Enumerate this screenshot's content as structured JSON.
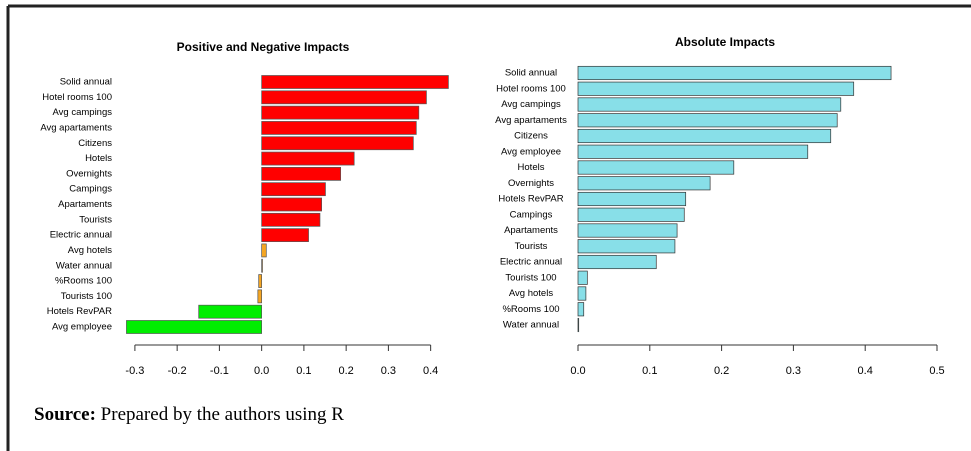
{
  "chart_data": [
    {
      "type": "barh",
      "title": "Positive and Negative Impacts",
      "categories": [
        "Solid annual",
        "Hotel rooms 100",
        "Avg campings",
        "Avg apartaments",
        "Citizens",
        "Hotels",
        "Overnights",
        "Campings",
        "Apartaments",
        "Tourists",
        "Electric annual",
        "Avg hotels",
        "Water annual",
        "%Rooms 100",
        "Tourists 100",
        "Hotels RevPAR",
        "Avg employee"
      ],
      "values": [
        0.442,
        0.39,
        0.372,
        0.366,
        0.359,
        0.219,
        0.187,
        0.151,
        0.142,
        0.138,
        0.111,
        0.011,
        0.002,
        -0.007,
        -0.009,
        -0.149,
        -0.32
      ],
      "colors": [
        "#ff0000",
        "#ff0000",
        "#ff0000",
        "#ff0000",
        "#ff0000",
        "#ff0000",
        "#ff0000",
        "#ff0000",
        "#ff0000",
        "#ff0000",
        "#ff0000",
        "#f5a623",
        "#f5a623",
        "#f5a623",
        "#f5a623",
        "#00ee00",
        "#00ee00"
      ],
      "xlim": [
        -0.34,
        0.46
      ],
      "xticks": [
        -0.3,
        -0.2,
        -0.1,
        {
          "value": 0,
          "label": "0.0"
        },
        0.1,
        0.2,
        0.3,
        0.4
      ]
    },
    {
      "type": "barh",
      "title": "Absolute Impacts",
      "categories": [
        "Solid annual",
        "Hotel rooms 100",
        "Avg campings",
        "Avg apartaments",
        "Citizens",
        "Avg employee",
        "Hotels",
        "Overnights",
        "Hotels RevPAR",
        "Campings",
        "Apartaments",
        "Tourists",
        "Electric annual",
        "Tourists 100",
        "Avg hotels",
        "%Rooms 100",
        "Water annual"
      ],
      "values": [
        0.436,
        0.384,
        0.366,
        0.361,
        0.352,
        0.32,
        0.217,
        0.184,
        0.15,
        0.148,
        0.138,
        0.135,
        0.109,
        0.013,
        0.011,
        0.008,
        0.001
      ],
      "color": "#88dfe8",
      "edgecolor": "#333333",
      "xlim": [
        0,
        0.5
      ],
      "xticks": [
        {
          "value": 0,
          "label": "0.0"
        },
        0.1,
        0.2,
        0.3,
        0.4,
        0.5
      ]
    }
  ],
  "source": {
    "label": "Source:",
    "text": "Prepared by the authors using R"
  }
}
